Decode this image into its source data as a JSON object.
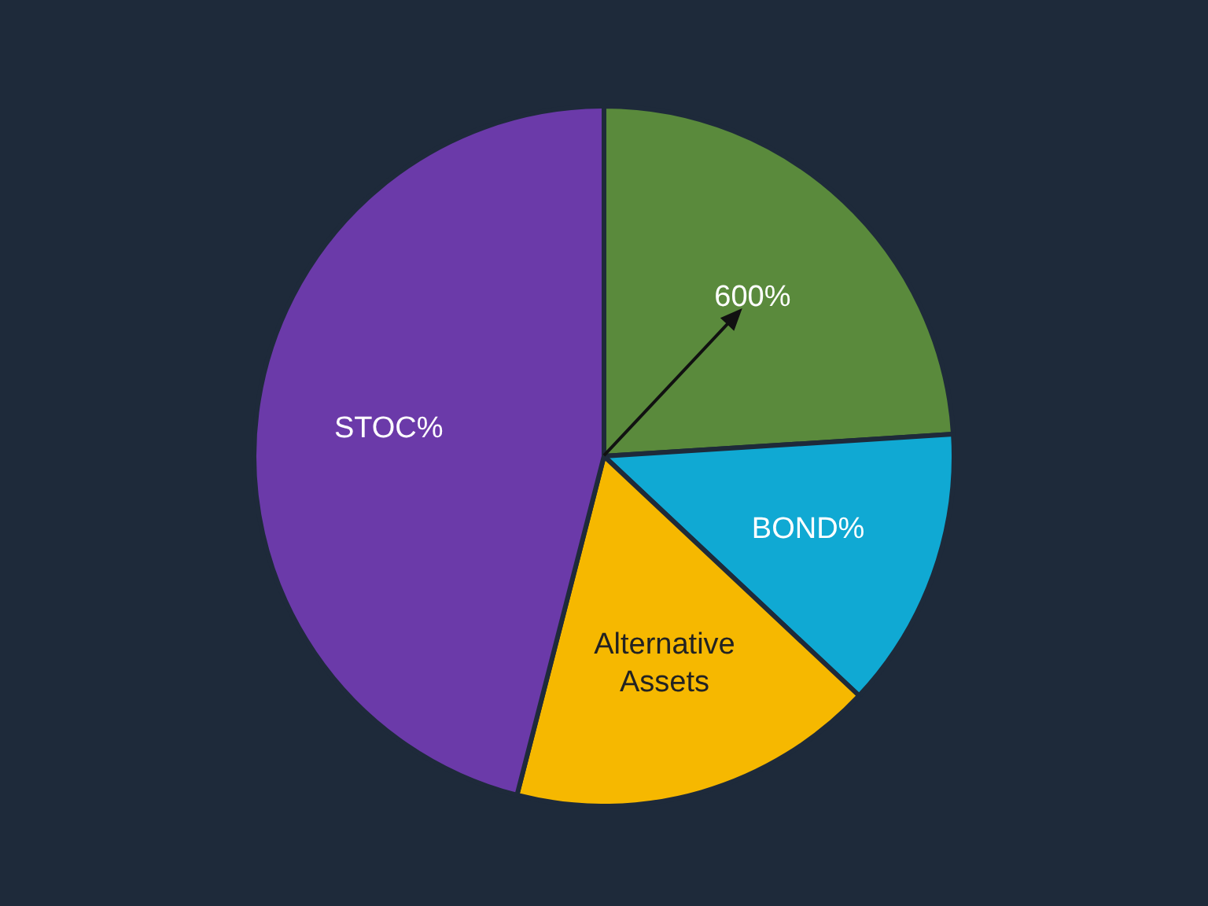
{
  "chart_data": {
    "type": "pie",
    "categories": [
      "600%",
      "BOND%",
      "Alternative Assets",
      "STOC%"
    ],
    "values": [
      24,
      13,
      17,
      46
    ],
    "colors": [
      "#5a8a3c",
      "#10a9d3",
      "#f6b800",
      "#6b3aa9"
    ],
    "legend": false,
    "needle": "600%"
  }
}
